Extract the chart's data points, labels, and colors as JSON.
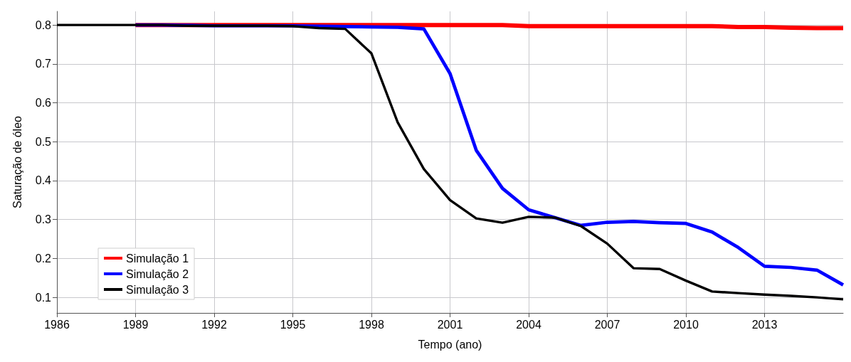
{
  "chart_data": {
    "type": "line",
    "xlabel": "Tempo (ano)",
    "ylabel": "Saturação de óleo",
    "x": [
      1986,
      1987,
      1988,
      1989,
      1990,
      1991,
      1992,
      1993,
      1994,
      1995,
      1996,
      1997,
      1998,
      1999,
      2000,
      2001,
      2002,
      2003,
      2004,
      2005,
      2006,
      2007,
      2008,
      2009,
      2010,
      2011,
      2012,
      2013,
      2014,
      2015,
      2016
    ],
    "series": [
      {
        "name": "Simulação 1",
        "color": "#ff0000",
        "values": [
          null,
          null,
          null,
          0.8,
          0.8,
          0.8,
          0.8,
          0.8,
          0.8,
          0.8,
          0.8,
          0.8,
          0.8,
          0.8,
          0.8,
          0.8,
          0.8,
          0.8,
          0.797,
          0.797,
          0.797,
          0.797,
          0.797,
          0.797,
          0.797,
          0.797,
          0.795,
          0.795,
          0.793,
          0.792,
          0.792
        ]
      },
      {
        "name": "Simulação 2",
        "color": "#0000ff",
        "values": [
          null,
          null,
          null,
          0.8,
          0.8,
          0.799,
          0.798,
          0.798,
          0.798,
          0.798,
          0.797,
          0.796,
          0.795,
          0.794,
          0.79,
          0.675,
          0.478,
          0.38,
          0.325,
          0.305,
          0.285,
          0.293,
          0.295,
          0.292,
          0.29,
          0.268,
          0.228,
          0.18,
          0.177,
          0.17,
          0.132
        ]
      },
      {
        "name": "Simulação 3",
        "color": "#000000",
        "values": [
          0.8,
          0.8,
          0.8,
          0.8,
          0.8,
          0.798,
          0.798,
          0.798,
          0.798,
          0.797,
          0.792,
          0.79,
          0.727,
          0.55,
          0.43,
          0.35,
          0.303,
          0.292,
          0.307,
          0.305,
          0.283,
          0.238,
          0.175,
          0.173,
          0.143,
          0.115,
          0.111,
          0.107,
          0.104,
          0.1,
          0.095
        ]
      }
    ],
    "xlim": [
      1986,
      2016
    ],
    "xticks": [
      1986,
      1989,
      1992,
      1995,
      1998,
      2001,
      2004,
      2007,
      2010,
      2013
    ],
    "ylim": [
      0.06,
      0.835
    ],
    "yticks": [
      0.1,
      0.2,
      0.3,
      0.4,
      0.5,
      0.6,
      0.7,
      0.8
    ],
    "grid": true,
    "legend": "bottom left",
    "marker": "none",
    "line_style": "solid"
  }
}
